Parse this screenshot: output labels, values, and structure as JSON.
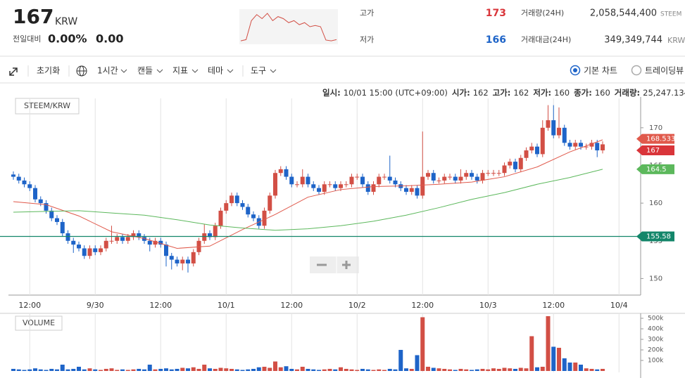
{
  "header": {
    "price": 167,
    "currency": "KRW",
    "change_label": "전일대비",
    "change_rate": "0.00%",
    "change_amount": "0.00",
    "high_label": "고가",
    "high": 173,
    "low_label": "저가",
    "low": 166,
    "volume_label": "거래량(24H)",
    "volume": "2,058,544,400",
    "volume_unit": "STEEM",
    "value_label": "거래대금(24H)",
    "value": "349,349,744",
    "value_unit": "KRW",
    "mini_chart": {
      "values": [
        166,
        166.3,
        171,
        172.5,
        171.5,
        172.8,
        171,
        172,
        171.5,
        170.5,
        171,
        170,
        170.5,
        169.5,
        169.8,
        169.5,
        166.2,
        166,
        166.3
      ],
      "ylim": [
        165.5,
        173.5
      ],
      "color": "#d24f45"
    }
  },
  "toolbar": {
    "items": [
      "초기화",
      "1시간",
      "캔들",
      "지표",
      "테마",
      "도구"
    ],
    "chart_modes": [
      "기본 차트",
      "트레이딩뷰"
    ]
  },
  "chart_data": {
    "type": "candlestick",
    "symbol": "STEEM/KRW",
    "info": [
      {
        "label": "일시:",
        "value": "10/01 15:00 (UTC+09:00)"
      },
      {
        "label": "시가:",
        "value": 162
      },
      {
        "label": "고가:",
        "value": 162
      },
      {
        "label": "저가:",
        "value": 160
      },
      {
        "label": "종가:",
        "value": 160
      },
      {
        "label": "거래량:",
        "value": "25,247.134"
      }
    ],
    "categories": [
      null,
      null,
      null,
      "12:00",
      null,
      null,
      null,
      null,
      null,
      null,
      null,
      null,
      null,
      null,
      null,
      "9/30",
      null,
      null,
      null,
      null,
      null,
      null,
      null,
      null,
      null,
      null,
      null,
      "12:00",
      null,
      null,
      null,
      null,
      null,
      null,
      null,
      null,
      null,
      null,
      null,
      "10/1",
      null,
      null,
      null,
      null,
      null,
      null,
      null,
      null,
      null,
      null,
      null,
      "12:00",
      null,
      null,
      null,
      null,
      null,
      null,
      null,
      null,
      null,
      null,
      null,
      "10/2",
      null,
      null,
      null,
      null,
      null,
      null,
      null,
      null,
      null,
      null,
      null,
      "12:00",
      null,
      null,
      null,
      null,
      null,
      null,
      null,
      null,
      null,
      null,
      null,
      "10/3",
      null,
      null,
      null,
      null,
      null,
      null,
      null,
      null,
      null,
      null,
      null,
      "12:00",
      null,
      null,
      null,
      null,
      null,
      null,
      null,
      null,
      null,
      null,
      null,
      "10/4"
    ],
    "open": [
      163.8,
      163.5,
      163,
      162.5,
      162,
      160.5,
      160,
      159,
      158,
      157.5,
      156,
      155,
      154.5,
      154,
      153,
      154,
      153.5,
      154,
      155,
      155,
      155.5,
      155,
      155.5,
      156,
      155.5,
      155,
      154.5,
      155,
      154.5,
      153,
      152.5,
      152,
      152.5,
      152,
      153.5,
      155,
      156,
      155.5,
      157,
      159,
      160,
      161,
      160,
      159.5,
      158.5,
      158,
      157,
      159,
      161,
      164,
      164.5,
      163.5,
      162.5,
      162.5,
      163.5,
      162.5,
      162,
      161.5,
      162.5,
      162.5,
      162,
      162.5,
      162.5,
      163.5,
      163.5,
      162.5,
      161.5,
      162.5,
      163.5,
      163.5,
      163,
      162.5,
      162,
      161.5,
      162,
      161,
      163.5,
      164,
      163,
      163,
      163.5,
      163.5,
      163,
      163.5,
      164,
      163.5,
      163,
      164,
      164,
      164,
      164,
      165,
      165.5,
      164.5,
      166,
      167,
      167.5,
      166.5,
      170,
      171,
      169,
      170,
      168,
      167.5,
      168,
      167.5,
      167.5,
      168,
      167,
      null,
      null,
      null
    ],
    "high": [
      164.2,
      163.9,
      163.4,
      162.9,
      162.4,
      160.9,
      160.4,
      159.4,
      158.4,
      157.9,
      156.4,
      155.4,
      154.9,
      154.4,
      154.4,
      154.4,
      154.4,
      155.4,
      157,
      155.9,
      155.9,
      155.9,
      156.4,
      156.4,
      155.9,
      155.4,
      155.4,
      155.4,
      154.9,
      153.4,
      152.9,
      152.9,
      152.9,
      153.9,
      155.4,
      157.2,
      156.4,
      157.4,
      159.4,
      160.4,
      161.4,
      161.4,
      160.4,
      159.9,
      158.9,
      158.4,
      159.4,
      161.4,
      164.4,
      164.9,
      164.9,
      163.9,
      162.9,
      164.5,
      163.9,
      162.9,
      162.4,
      162.9,
      162.9,
      162.9,
      162.9,
      162.9,
      163.9,
      163.9,
      163.9,
      162.9,
      162.9,
      163.9,
      163.9,
      166.3,
      163.4,
      162.9,
      162.4,
      162.4,
      162.4,
      169.5,
      164.4,
      164.4,
      163.4,
      163.9,
      163.9,
      163.9,
      164.5,
      164.4,
      164.4,
      163.9,
      164.4,
      164.4,
      164.4,
      164.4,
      165.4,
      165.9,
      165.9,
      166.4,
      167.4,
      168,
      167.9,
      171,
      173,
      173,
      172.7,
      170.4,
      168.4,
      168.4,
      168.4,
      167.9,
      168.4,
      168.4,
      168.2,
      null,
      null,
      null
    ],
    "low": [
      163.1,
      162.6,
      162.1,
      161.6,
      160.1,
      159.6,
      158.6,
      157.6,
      157.1,
      155.6,
      154.6,
      153.4,
      153.6,
      152.6,
      152.6,
      153.1,
      153.1,
      153.6,
      154.6,
      154.6,
      154.6,
      154.6,
      155.1,
      155.1,
      154.6,
      153.6,
      154.1,
      154.1,
      151.6,
      151.2,
      151.6,
      151.1,
      150.8,
      151.6,
      153.1,
      154.6,
      155.1,
      155.1,
      156.6,
      158.6,
      159.6,
      159.6,
      159.1,
      158.1,
      157.6,
      156.6,
      156.6,
      158.6,
      160.6,
      163.6,
      163.1,
      162.1,
      162.1,
      162.1,
      162.1,
      161.6,
      161.1,
      161.1,
      162.1,
      161.6,
      161.6,
      162.1,
      162.1,
      163.1,
      162.1,
      161.1,
      161.1,
      162.1,
      163.1,
      162.6,
      162.1,
      161.6,
      161.1,
      161.1,
      160.6,
      160.6,
      163.1,
      162.6,
      162.6,
      162.6,
      163.1,
      162.6,
      162.6,
      163.1,
      163.1,
      162.6,
      162.6,
      163.6,
      163.6,
      163.6,
      163.6,
      164.6,
      164.1,
      164.1,
      165.6,
      166.6,
      166.1,
      166.1,
      169.6,
      168.6,
      168.6,
      167.6,
      167.1,
      167.1,
      167.1,
      167.1,
      167.1,
      166.1,
      166.6,
      null,
      null,
      null
    ],
    "close": [
      163.5,
      163,
      162.5,
      162,
      160.5,
      160,
      159,
      158,
      157.5,
      156,
      155,
      154.5,
      154,
      153,
      154,
      153.5,
      154,
      155,
      155,
      155.5,
      155,
      155.5,
      156,
      155.5,
      155,
      154.5,
      155,
      154.5,
      153,
      152.5,
      152,
      152.5,
      152,
      153.5,
      155,
      156,
      155.5,
      157,
      159,
      160,
      161,
      160,
      159.5,
      158.5,
      158,
      157,
      159,
      161,
      164,
      164.5,
      163.5,
      162.5,
      162.5,
      163.5,
      162.5,
      162,
      161.5,
      162.5,
      162.5,
      162,
      162.5,
      162.5,
      163.5,
      163.5,
      162.5,
      161.5,
      162.5,
      163.5,
      163.5,
      163,
      162.5,
      162,
      161.5,
      162,
      161,
      163.5,
      164,
      163,
      163,
      163.5,
      163.5,
      163,
      163.5,
      164,
      163.5,
      163,
      164,
      164,
      164,
      164,
      165,
      165.5,
      164.5,
      166,
      167,
      167.5,
      166.5,
      170,
      171,
      169,
      170,
      168,
      167.5,
      168,
      167.5,
      167.5,
      168,
      167,
      167.8,
      null,
      null,
      null
    ],
    "up_color": "#d24f45",
    "down_color": "#1e64c8",
    "ylim": [
      147.8,
      173.9
    ],
    "yticks": [
      150,
      155,
      160,
      165,
      170
    ],
    "overlays": [
      {
        "color": "#e0594b",
        "x": [
          0,
          6,
          12,
          18,
          24,
          30,
          36,
          42,
          48,
          54,
          60,
          66,
          72,
          78,
          84,
          90,
          96,
          102,
          108
        ],
        "values": [
          160.2,
          159.8,
          158.3,
          156.2,
          155.3,
          154.0,
          154.3,
          156.5,
          158.5,
          160.8,
          161.8,
          162.2,
          162.3,
          162.5,
          162.8,
          163.5,
          164.8,
          166.8,
          168.4
        ]
      },
      {
        "color": "#5cb85c",
        "x": [
          0,
          6,
          12,
          18,
          24,
          30,
          36,
          42,
          48,
          54,
          60,
          66,
          72,
          78,
          84,
          90,
          96,
          102,
          108
        ],
        "values": [
          158.8,
          158.9,
          159.0,
          158.7,
          158.4,
          157.8,
          157.1,
          156.7,
          156.4,
          156.6,
          157.0,
          157.6,
          158.4,
          159.4,
          160.5,
          161.4,
          162.5,
          163.4,
          164.5
        ]
      }
    ],
    "price_lines": [
      {
        "value": 168.533,
        "color": "#e0594b"
      },
      {
        "value": 167,
        "color": "#d9353a"
      },
      {
        "value": 164.5,
        "color": "#5cb85c"
      },
      {
        "value": 155.58,
        "color": "#13866a",
        "line": true
      }
    ],
    "volume": {
      "label": "VOLUME",
      "values": [
        20000,
        15000,
        10000,
        15000,
        25000,
        15000,
        10000,
        20000,
        15000,
        60000,
        15000,
        20000,
        40000,
        15000,
        25000,
        15000,
        10000,
        20000,
        25000,
        10000,
        15000,
        10000,
        15000,
        20000,
        15000,
        60000,
        15000,
        20000,
        25000,
        15000,
        20000,
        30000,
        25000,
        35000,
        20000,
        60000,
        25000,
        20000,
        30000,
        25000,
        20000,
        15000,
        10000,
        15000,
        20000,
        35000,
        40000,
        30000,
        90000,
        35000,
        45000,
        20000,
        15000,
        40000,
        20000,
        15000,
        10000,
        15000,
        20000,
        15000,
        35000,
        20000,
        15000,
        10000,
        20000,
        15000,
        10000,
        15000,
        10000,
        20000,
        15000,
        200000,
        25000,
        20000,
        150000,
        510000,
        40000,
        30000,
        25000,
        20000,
        15000,
        10000,
        20000,
        15000,
        10000,
        15000,
        20000,
        15000,
        25000,
        20000,
        30000,
        25000,
        20000,
        30000,
        25000,
        330000,
        35000,
        40000,
        520000,
        230000,
        220000,
        120000,
        80000,
        80000,
        60000,
        25000,
        20000,
        15000,
        20000,
        null,
        null,
        null
      ],
      "ylim": [
        0,
        540000
      ],
      "yticks": [
        {
          "value": 100000,
          "label": "100k"
        },
        {
          "value": 200000,
          "label": "200k"
        },
        {
          "value": 300000,
          "label": "300k"
        },
        {
          "value": 400000,
          "label": "400k"
        },
        {
          "value": 500000,
          "label": "500k"
        }
      ]
    }
  }
}
